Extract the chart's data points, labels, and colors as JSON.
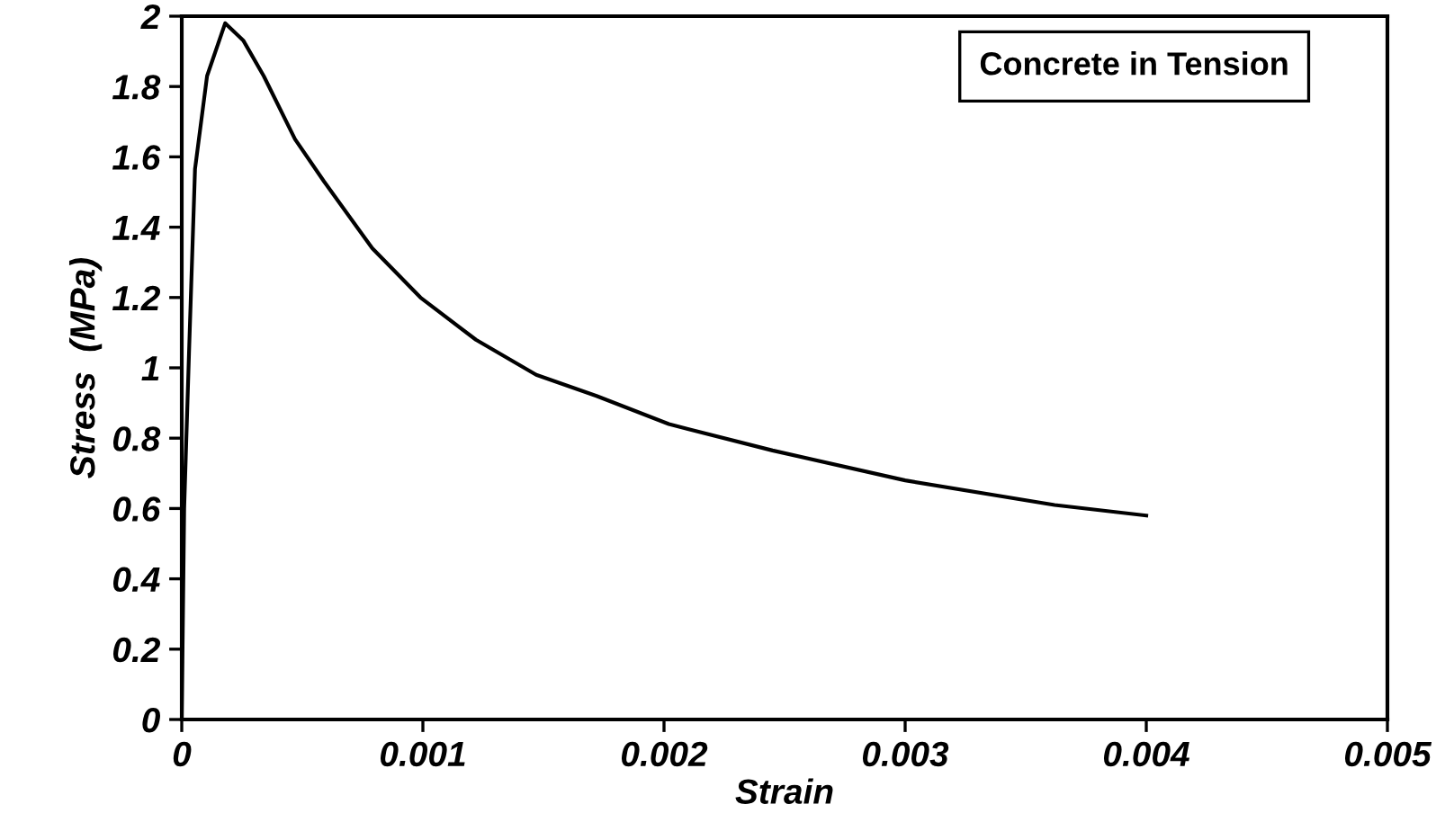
{
  "chart_data": {
    "type": "line",
    "xlabel": "Strain",
    "ylabel": "Stress  (MPa)",
    "annotations": [
      "Concrete in Tension"
    ],
    "x": [
      0,
      1e-05,
      3e-05,
      5.5e-05,
      0.000105,
      0.00018,
      0.000256,
      0.00034,
      0.00047,
      0.00059,
      0.00079,
      0.00099,
      0.00122,
      0.00147,
      0.00172,
      0.00202,
      0.00245,
      0.003,
      0.00362,
      0.004
    ],
    "series": [
      {
        "color": "#000000",
        "values": [
          0,
          0.6,
          1.04,
          1.565,
          1.83,
          1.98,
          1.93,
          1.83,
          1.65,
          1.53,
          1.34,
          1.2,
          1.08,
          0.98,
          0.92,
          0.84,
          0.765,
          0.68,
          0.61,
          0.58
        ]
      }
    ],
    "xlim": [
      0,
      0.005
    ],
    "xticks": [
      0,
      0.001,
      0.002,
      0.003,
      0.004,
      0.005
    ],
    "ylim": [
      0,
      2
    ],
    "yticks": [
      0,
      0.2,
      0.4,
      0.6,
      0.8,
      1,
      1.2,
      1.4,
      1.6,
      1.8,
      2
    ],
    "grid": false,
    "marker": "none",
    "line_style": "solid"
  }
}
